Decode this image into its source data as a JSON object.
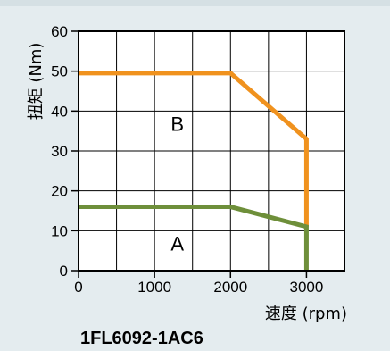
{
  "chart_data": {
    "type": "line",
    "title": "",
    "xlabel": "速度 (rpm)",
    "ylabel": "扭矩 (Nm)",
    "xlim": [
      0,
      3500
    ],
    "ylim": [
      0,
      60
    ],
    "x_ticks": [
      "0",
      "1000",
      "2000",
      "3000"
    ],
    "y_ticks": [
      "0",
      "10",
      "20",
      "30",
      "40",
      "50",
      "60"
    ],
    "grid": true,
    "series": [
      {
        "color": "#f0921e",
        "x": [
          0,
          2000,
          3000,
          3000
        ],
        "y": [
          49.5,
          49.5,
          33,
          11
        ]
      },
      {
        "color": "#6e8f3a",
        "x": [
          0,
          2000,
          3000,
          3000
        ],
        "y": [
          16,
          16,
          11,
          0
        ]
      }
    ],
    "annotations": [
      {
        "text": "B",
        "x": 1300,
        "y": 35
      },
      {
        "text": "A",
        "x": 1300,
        "y": 5
      }
    ]
  },
  "model": "1FL6092-1AC6"
}
